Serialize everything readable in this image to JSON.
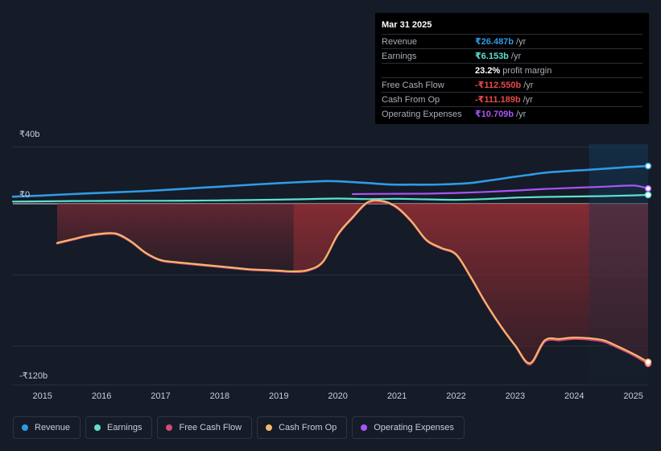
{
  "tooltip": {
    "date": "Mar 31 2025",
    "rows": [
      {
        "label": "Revenue",
        "value": "₹26.487b",
        "unit": "/yr",
        "color": "#2e9be6"
      },
      {
        "label": "Earnings",
        "value": "₹6.153b",
        "unit": "/yr",
        "color": "#5ee0cf"
      },
      {
        "label": "",
        "value": "23.2%",
        "unit": "profit margin",
        "color": "#ffffff"
      },
      {
        "label": "Free Cash Flow",
        "value": "-₹112.550b",
        "unit": "/yr",
        "color": "#e84a4a"
      },
      {
        "label": "Cash From Op",
        "value": "-₹111.189b",
        "unit": "/yr",
        "color": "#e84a4a"
      },
      {
        "label": "Operating Expenses",
        "value": "₹10.709b",
        "unit": "/yr",
        "color": "#a855f7"
      }
    ]
  },
  "legend": [
    {
      "label": "Revenue",
      "color": "#2e9be6"
    },
    {
      "label": "Earnings",
      "color": "#5ee0cf"
    },
    {
      "label": "Free Cash Flow",
      "color": "#d9487a"
    },
    {
      "label": "Cash From Op",
      "color": "#f3b76b"
    },
    {
      "label": "Operating Expenses",
      "color": "#a855f7"
    }
  ],
  "chart_data": {
    "type": "line",
    "title": "",
    "xlabel": "",
    "ylabel": "",
    "y_axis_labels": [
      "₹40b",
      "₹0",
      "-₹120b"
    ],
    "x_ticks": [
      "2015",
      "2016",
      "2017",
      "2018",
      "2019",
      "2020",
      "2021",
      "2022",
      "2023",
      "2024",
      "2025"
    ],
    "xlim": [
      2014.5,
      2025.25
    ],
    "ylim": [
      -120,
      40
    ],
    "series": [
      {
        "name": "Revenue",
        "color": "#2e9be6",
        "x": [
          2014.5,
          2015.0,
          2015.5,
          2016.0,
          2016.5,
          2017.0,
          2017.5,
          2018.0,
          2018.5,
          2019.0,
          2019.25,
          2019.5,
          2019.75,
          2020.0,
          2020.25,
          2020.5,
          2020.75,
          2021.0,
          2021.25,
          2021.5,
          2021.75,
          2022.0,
          2022.25,
          2022.5,
          2022.75,
          2023.0,
          2023.25,
          2023.5,
          2023.75,
          2024.0,
          2024.25,
          2024.5,
          2024.75,
          2025.0,
          2025.25
        ],
        "y": [
          5.0,
          5.8,
          6.8,
          7.7,
          8.5,
          9.5,
          10.8,
          12.0,
          13.3,
          14.5,
          15.0,
          15.5,
          15.9,
          15.8,
          15.2,
          14.6,
          13.8,
          13.4,
          13.5,
          13.4,
          13.6,
          14.0,
          14.6,
          16.0,
          17.5,
          19.0,
          20.4,
          21.8,
          22.6,
          23.3,
          23.9,
          24.6,
          25.3,
          26.0,
          26.5
        ]
      },
      {
        "name": "Earnings",
        "color": "#5ee0cf",
        "x": [
          2014.5,
          2015.0,
          2015.5,
          2016.0,
          2016.5,
          2017.0,
          2017.5,
          2018.0,
          2018.5,
          2019.0,
          2019.5,
          2020.0,
          2020.5,
          2021.0,
          2021.5,
          2022.0,
          2022.5,
          2023.0,
          2023.5,
          2024.0,
          2024.5,
          2025.0,
          2025.25
        ],
        "y": [
          1.5,
          1.7,
          1.9,
          2.0,
          2.1,
          2.1,
          2.2,
          2.4,
          2.6,
          2.9,
          3.3,
          3.7,
          3.3,
          3.5,
          3.1,
          2.8,
          3.3,
          4.3,
          4.8,
          5.1,
          5.4,
          5.9,
          6.2
        ]
      },
      {
        "name": "Operating Expenses",
        "color": "#a855f7",
        "x": [
          2020.25,
          2020.5,
          2021.0,
          2021.5,
          2022.0,
          2022.5,
          2023.0,
          2023.5,
          2024.0,
          2024.5,
          2025.0,
          2025.25
        ],
        "y": [
          6.8,
          6.9,
          7.0,
          7.1,
          7.6,
          8.3,
          9.3,
          10.4,
          11.2,
          12.0,
          12.8,
          10.7
        ]
      },
      {
        "name": "Free Cash Flow",
        "color": "#d9487a",
        "x": [
          2015.25,
          2015.5,
          2015.75,
          2016.0,
          2016.25,
          2016.5,
          2016.75,
          2017.0,
          2017.25,
          2017.5,
          2017.75,
          2018.0,
          2018.25,
          2018.5,
          2018.75,
          2019.0,
          2019.25,
          2019.5,
          2019.75,
          2020.0,
          2020.25,
          2020.5,
          2020.75,
          2021.0,
          2021.25,
          2021.5,
          2021.75,
          2022.0,
          2022.25,
          2022.5,
          2022.75,
          2023.0,
          2023.25,
          2023.5,
          2023.75,
          2024.0,
          2024.25,
          2024.5,
          2024.75,
          2025.0,
          2025.25
        ],
        "y": [
          -28.0,
          -25.5,
          -23.0,
          -21.5,
          -21.5,
          -27.0,
          -35.0,
          -40.0,
          -41.5,
          -42.5,
          -43.5,
          -44.5,
          -45.5,
          -46.5,
          -47.0,
          -47.5,
          -48.0,
          -47.0,
          -41.0,
          -22.0,
          -10.0,
          0.5,
          1.5,
          -3.0,
          -13.0,
          -26.0,
          -31.5,
          -36.0,
          -52.0,
          -70.0,
          -86.0,
          -100.0,
          -113.0,
          -97.0,
          -96.0,
          -95.0,
          -95.5,
          -97.0,
          -101.5,
          -106.5,
          -112.5
        ]
      },
      {
        "name": "Cash From Op",
        "color": "#f3b76b",
        "x": [
          2015.25,
          2015.5,
          2015.75,
          2016.0,
          2016.25,
          2016.5,
          2016.75,
          2017.0,
          2017.25,
          2017.5,
          2017.75,
          2018.0,
          2018.25,
          2018.5,
          2018.75,
          2019.0,
          2019.25,
          2019.5,
          2019.75,
          2020.0,
          2020.25,
          2020.5,
          2020.75,
          2021.0,
          2021.25,
          2021.5,
          2021.75,
          2022.0,
          2022.25,
          2022.5,
          2022.75,
          2023.0,
          2023.25,
          2023.5,
          2023.75,
          2024.0,
          2024.25,
          2024.5,
          2024.75,
          2025.0,
          2025.25
        ],
        "y": [
          -27.5,
          -25.0,
          -22.5,
          -21.0,
          -21.0,
          -26.5,
          -34.5,
          -39.5,
          -41.0,
          -42.0,
          -43.0,
          -44.0,
          -45.0,
          -46.0,
          -46.5,
          -47.0,
          -47.5,
          -46.5,
          -40.5,
          -21.5,
          -9.5,
          1.0,
          2.0,
          -2.5,
          -12.5,
          -25.5,
          -31.0,
          -35.5,
          -51.5,
          -69.5,
          -85.5,
          -99.5,
          -112.0,
          -96.0,
          -95.0,
          -94.0,
          -94.5,
          -96.0,
          -100.5,
          -105.5,
          -111.2
        ]
      }
    ]
  }
}
